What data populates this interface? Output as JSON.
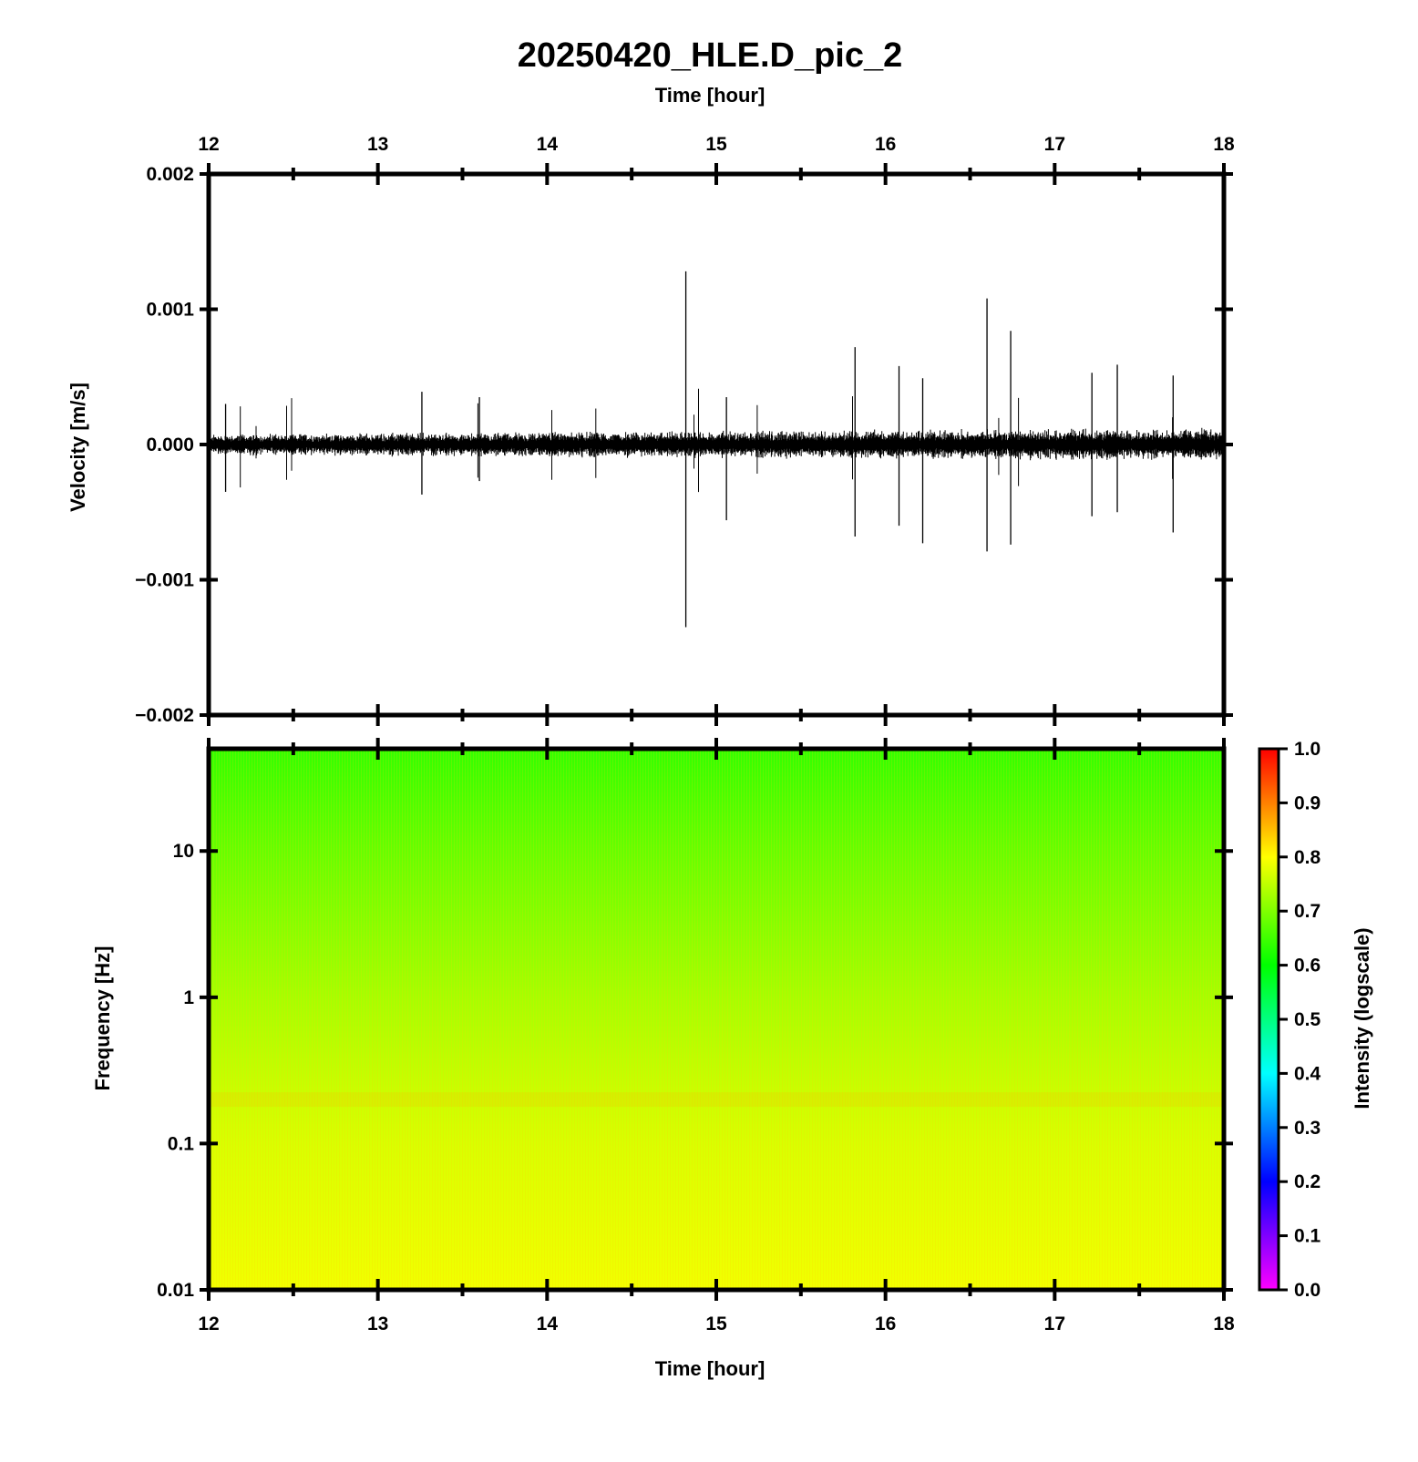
{
  "title": "20250420_HLE.D_pic_2",
  "chart_data": [
    {
      "type": "line",
      "name": "waveform",
      "xlabel": "Time [hour]",
      "ylabel": "Velocity [m/s]",
      "xlim": [
        12,
        18
      ],
      "ylim": [
        -0.002,
        0.002
      ],
      "x_ticks": [
        12,
        13,
        14,
        15,
        16,
        17,
        18
      ],
      "x_tick_labels": [
        "12",
        "13",
        "14",
        "15",
        "16",
        "17",
        "18"
      ],
      "y_ticks": [
        0.002,
        0.001,
        0.0,
        -0.001,
        -0.002
      ],
      "y_tick_labels": [
        "0.002",
        "0.001",
        "0.000",
        "−0.001",
        "−0.002"
      ],
      "line_color": "#000000",
      "background_noise_amplitude": 5e-05,
      "spikes": [
        {
          "x": 12.1,
          "y_max": 0.0003,
          "y_min": -0.00035
        },
        {
          "x": 13.26,
          "y_max": 0.00039,
          "y_min": -0.00037
        },
        {
          "x": 13.6,
          "y_max": 0.00035,
          "y_min": -0.00027
        },
        {
          "x": 14.82,
          "y_max": 0.00128,
          "y_min": -0.00135
        },
        {
          "x": 15.06,
          "y_max": 0.00035,
          "y_min": -0.00056
        },
        {
          "x": 15.82,
          "y_max": 0.00072,
          "y_min": -0.00068
        },
        {
          "x": 16.08,
          "y_max": 0.00058,
          "y_min": -0.0006
        },
        {
          "x": 16.22,
          "y_max": 0.00049,
          "y_min": -0.00073
        },
        {
          "x": 16.6,
          "y_max": 0.00108,
          "y_min": -0.00079
        },
        {
          "x": 16.74,
          "y_max": 0.00084,
          "y_min": -0.00074
        },
        {
          "x": 17.22,
          "y_max": 0.00053,
          "y_min": -0.00053
        },
        {
          "x": 17.37,
          "y_max": 0.00059,
          "y_min": -0.0005
        },
        {
          "x": 17.7,
          "y_max": 0.00051,
          "y_min": -0.00065
        }
      ]
    },
    {
      "type": "heatmap",
      "name": "spectrogram",
      "xlabel": "Time [hour]",
      "ylabel": "Frequency [Hz]",
      "xlim": [
        12,
        18
      ],
      "ylim": [
        0.01,
        50
      ],
      "y_scale": "log",
      "x_ticks": [
        12,
        13,
        14,
        15,
        16,
        17,
        18
      ],
      "x_tick_labels": [
        "12",
        "13",
        "14",
        "15",
        "16",
        "17",
        "18"
      ],
      "y_ticks": [
        10,
        1,
        0.1,
        0.01
      ],
      "y_tick_labels": [
        "10",
        "1",
        "0.1",
        "0.01"
      ],
      "intensity_profile": [
        {
          "freq": 50,
          "intensity": 0.64
        },
        {
          "freq": 10,
          "intensity": 0.68
        },
        {
          "freq": 1,
          "intensity": 0.73
        },
        {
          "freq": 0.2,
          "intensity": 0.76
        },
        {
          "freq": 0.1,
          "intensity": 0.77
        },
        {
          "freq": 0.01,
          "intensity": 0.79
        }
      ],
      "colorbar": {
        "label": "Intensity (logscale)",
        "range": [
          0.0,
          1.0
        ],
        "ticks": [
          0.0,
          0.1,
          0.2,
          0.3,
          0.4,
          0.5,
          0.6,
          0.7,
          0.8,
          0.9,
          1.0
        ],
        "tick_labels": [
          "0.0",
          "0.1",
          "0.2",
          "0.3",
          "0.4",
          "0.5",
          "0.6",
          "0.7",
          "0.8",
          "0.9",
          "1.0"
        ],
        "colormap": [
          "#ff00ff",
          "#0000ff",
          "#00ffff",
          "#00ff00",
          "#ffff00",
          "#ff8000",
          "#ff0000"
        ],
        "colormap_stops": [
          0.0,
          0.2,
          0.4,
          0.6,
          0.8,
          0.9,
          1.0
        ]
      }
    }
  ]
}
